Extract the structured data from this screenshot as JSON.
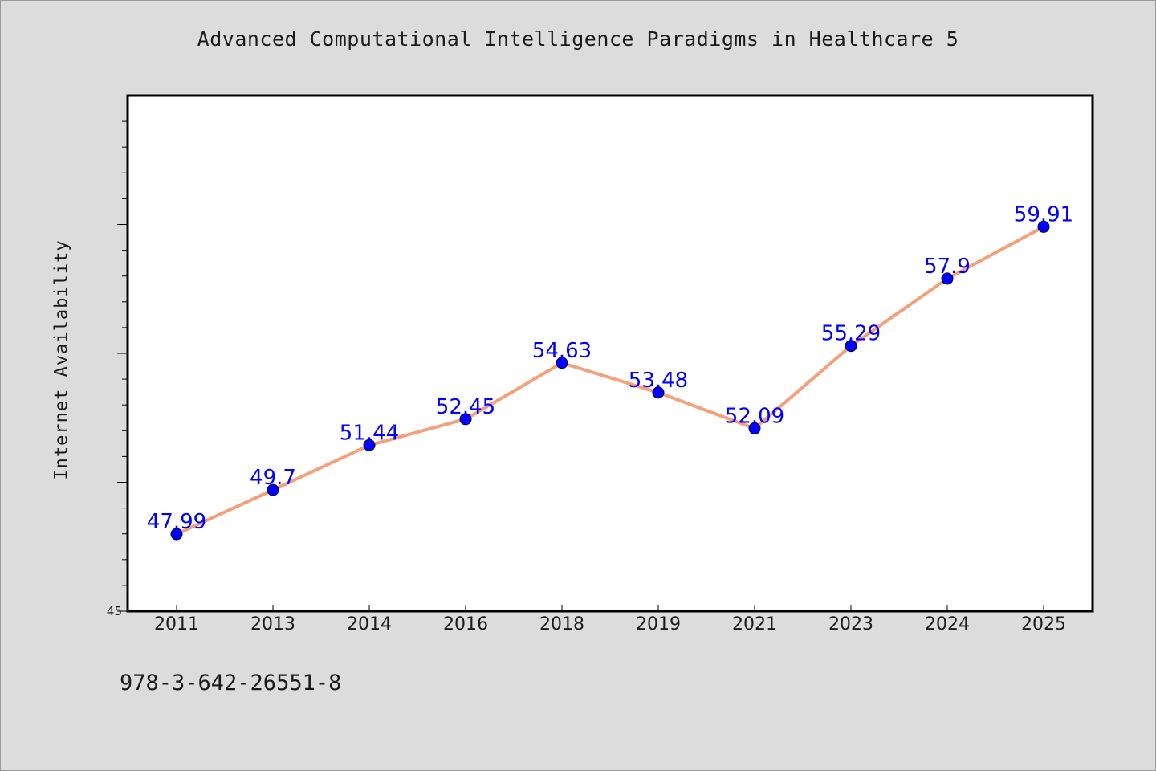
{
  "page": {
    "background": "#dcdcdc",
    "isbn": "978-3-642-26551-8"
  },
  "chart_data": {
    "type": "line",
    "title": "Advanced Computational Intelligence Paradigms in Healthcare 5",
    "xlabel": "",
    "ylabel": "Internet Availability",
    "categories": [
      "2011",
      "2013",
      "2014",
      "2016",
      "2018",
      "2019",
      "2021",
      "2023",
      "2024",
      "2025"
    ],
    "series": [
      {
        "values": [
          47.99,
          49.7,
          51.44,
          52.45,
          54.63,
          53.48,
          52.09,
          55.29,
          57.9,
          59.91
        ],
        "labels": [
          "47.99",
          "49.7",
          "51.44",
          "52.45",
          "54.63",
          "53.48",
          "52.09",
          "55.29",
          "57.9",
          "59.91"
        ],
        "line_color": "#f4a07a",
        "marker_color": "#0000ff",
        "label_color": "#0000ff"
      }
    ],
    "ylim": [
      45,
      65
    ],
    "y_tick_labels": [
      "45"
    ],
    "y_major_step": 5,
    "y_minor_step": 1,
    "grid": false,
    "legend": "none"
  }
}
